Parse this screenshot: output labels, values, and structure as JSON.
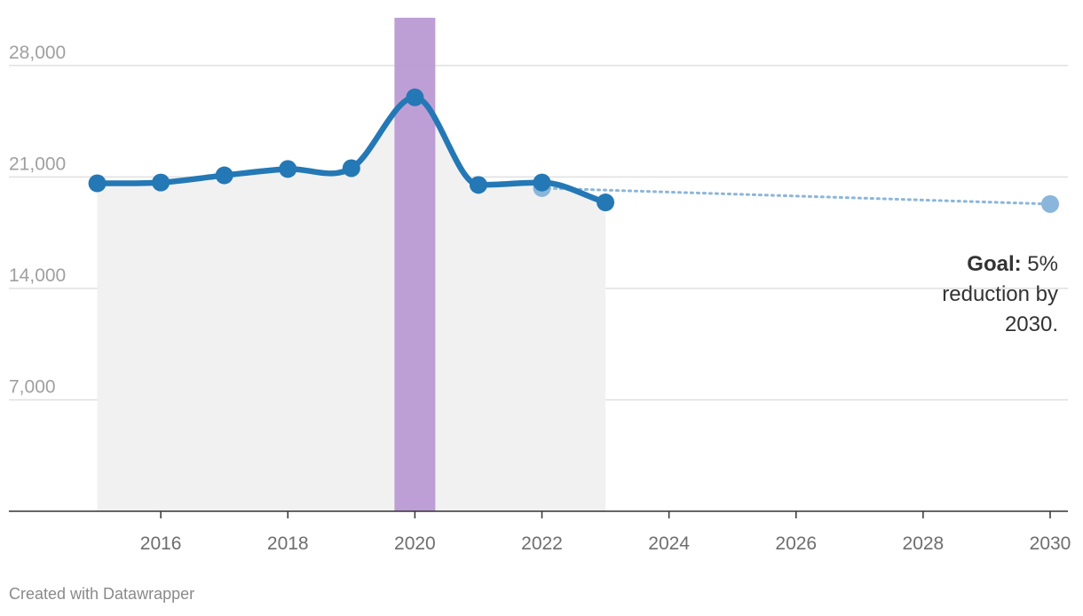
{
  "chart_data": {
    "type": "line",
    "x": [
      2015,
      2016,
      2017,
      2018,
      2019,
      2020,
      2021,
      2022,
      2023
    ],
    "series": [
      {
        "values": [
          20600,
          20650,
          21100,
          21500,
          21550,
          26000,
          20500,
          20650,
          19400
        ],
        "color": "#2478b5"
      }
    ],
    "goal_series": {
      "x": [
        2022,
        2030
      ],
      "values": [
        20300,
        19300
      ],
      "color": "#8ab6db",
      "style": "dotted"
    },
    "highlight_band": {
      "x": 2020,
      "color": "#b99ad3"
    },
    "area_fill_color": "#f1f1f2",
    "xlim": [
      2014,
      2030
    ],
    "ylim": [
      0,
      31000
    ],
    "y_ticks": [
      7000,
      14000,
      21000,
      28000
    ],
    "y_tick_labels": [
      "7,000",
      "14,000",
      "21,000",
      "28,000"
    ],
    "x_ticks": [
      2016,
      2018,
      2020,
      2022,
      2024,
      2026,
      2028,
      2030
    ],
    "x_tick_labels": [
      "2016",
      "2018",
      "2020",
      "2022",
      "2024",
      "2026",
      "2028",
      "2030"
    ],
    "grid": true,
    "annotation": {
      "bold": "Goal:",
      "line1": " 5%",
      "line2": "reduction by",
      "line3": "2030."
    }
  },
  "footer": {
    "credit": "Created with Datawrapper"
  }
}
